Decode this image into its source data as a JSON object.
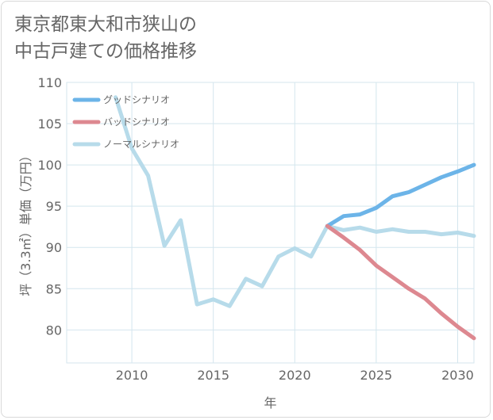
{
  "title_lines": [
    "東京都東大和市狭山の",
    "中古戸建ての価格推移"
  ],
  "chart_data": {
    "type": "line",
    "xlabel": "年",
    "ylabel": "坪（3.3㎡）単価（万円）",
    "xlim": [
      2006,
      2031
    ],
    "ylim": [
      76,
      110
    ],
    "x_ticks": [
      2010,
      2015,
      2020,
      2025,
      2030
    ],
    "y_ticks": [
      80,
      85,
      90,
      95,
      100,
      105,
      110
    ],
    "grid": true,
    "legend_position": "top-left",
    "series": [
      {
        "name": "グッドシナリオ",
        "color": "#6cb4e8",
        "x": [
          2022,
          2023,
          2024,
          2025,
          2026,
          2027,
          2028,
          2029,
          2030,
          2031
        ],
        "y": [
          92.6,
          93.8,
          94.0,
          94.8,
          96.2,
          96.7,
          97.6,
          98.5,
          99.2,
          100.0
        ]
      },
      {
        "name": "バッドシナリオ",
        "color": "#dd8890",
        "x": [
          2022,
          2023,
          2024,
          2025,
          2026,
          2027,
          2028,
          2029,
          2030,
          2031
        ],
        "y": [
          92.6,
          91.2,
          89.7,
          87.8,
          86.4,
          85.0,
          83.8,
          82.0,
          80.4,
          79.0
        ]
      },
      {
        "name": "ノーマルシナリオ",
        "color": "#b7dbea",
        "x": [
          2009,
          2010,
          2011,
          2012,
          2013,
          2014,
          2015,
          2016,
          2017,
          2018,
          2019,
          2020,
          2021,
          2022,
          2023,
          2024,
          2025,
          2026,
          2027,
          2028,
          2029,
          2030,
          2031
        ],
        "y": [
          108.2,
          102.0,
          98.7,
          90.2,
          93.3,
          83.1,
          83.7,
          82.9,
          86.2,
          85.3,
          88.9,
          89.9,
          88.9,
          92.6,
          92.1,
          92.4,
          91.9,
          92.2,
          91.9,
          91.9,
          91.6,
          91.8,
          91.4
        ]
      }
    ]
  }
}
